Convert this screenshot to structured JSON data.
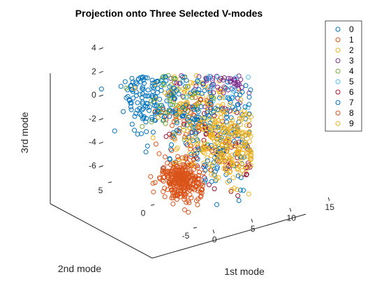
{
  "chart_data": {
    "type": "scatter",
    "title": "Projection onto Three Selected V-modes",
    "xlabel": "1st mode",
    "ylabel": "2nd mode",
    "zlabel": "3rd mode",
    "x_ticks": [
      "0",
      "5",
      "10",
      "15"
    ],
    "y_ticks": [
      "-5",
      "0",
      "5"
    ],
    "z_ticks": [
      "-6",
      "-4",
      "-2",
      "0",
      "2",
      "4"
    ],
    "xlim": [
      -1,
      15
    ],
    "ylim": [
      -6,
      6
    ],
    "zlim": [
      -7,
      4.5
    ],
    "legend_position": "top-right-outside",
    "marker": "circle-open",
    "colors": [
      "#0072BD",
      "#D95319",
      "#EDB120",
      "#7E2F8E",
      "#77AC30",
      "#4DBEEE",
      "#A2142F",
      "#0072BD",
      "#D95319",
      "#EDB120"
    ],
    "series": [
      {
        "name": "0",
        "center": [
          3.0,
          4.0,
          0.5
        ],
        "spread": [
          1.4,
          1.4,
          1.6
        ],
        "count": 180
      },
      {
        "name": "1",
        "center": [
          4.0,
          1.0,
          -1.0
        ],
        "spread": [
          1.2,
          1.2,
          1.2
        ],
        "count": 60
      },
      {
        "name": "2",
        "center": [
          6.0,
          1.5,
          0.5
        ],
        "spread": [
          2.0,
          2.0,
          1.8
        ],
        "count": 120
      },
      {
        "name": "3",
        "center": [
          9.0,
          2.0,
          2.0
        ],
        "spread": [
          2.0,
          2.0,
          1.0
        ],
        "count": 260
      },
      {
        "name": "4",
        "center": [
          5.0,
          2.5,
          -0.5
        ],
        "spread": [
          2.0,
          2.0,
          1.4
        ],
        "count": 60
      },
      {
        "name": "5",
        "center": [
          10.0,
          2.5,
          2.0
        ],
        "spread": [
          1.8,
          1.8,
          1.0
        ],
        "count": 90
      },
      {
        "name": "6",
        "center": [
          6.0,
          -2.0,
          -3.0
        ],
        "spread": [
          2.0,
          2.0,
          1.4
        ],
        "count": 90
      },
      {
        "name": "7",
        "center": [
          6.0,
          -1.0,
          -1.5
        ],
        "spread": [
          3.0,
          3.0,
          2.4
        ],
        "count": 260
      },
      {
        "name": "8",
        "center": [
          2.0,
          -0.5,
          -5.2
        ],
        "spread": [
          0.9,
          0.9,
          0.8
        ],
        "count": 300
      },
      {
        "name": "9",
        "center": [
          8.0,
          -1.5,
          -3.2
        ],
        "spread": [
          2.0,
          2.0,
          1.4
        ],
        "count": 320
      }
    ]
  }
}
